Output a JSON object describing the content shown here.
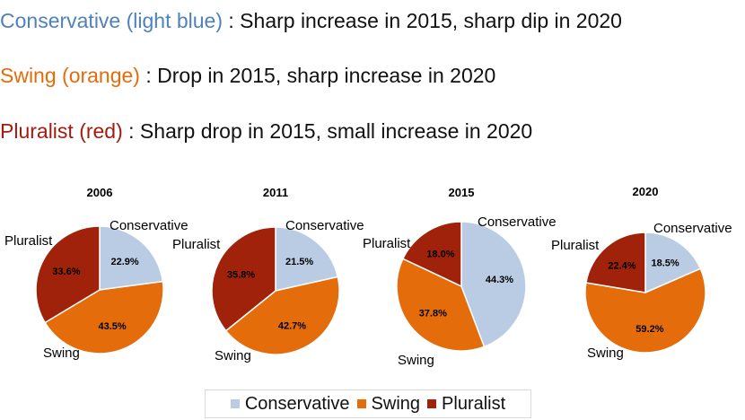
{
  "notes": [
    {
      "key": "Conservative (light blue)",
      "text": " : Sharp increase in 2015, sharp dip in 2020",
      "color": "#4f81bd"
    },
    {
      "key": "Swing (orange)",
      "text": " : Drop in 2015, sharp increase in 2020",
      "color": "#e36c0a"
    },
    {
      "key": "Pluralist (red)",
      "text": " : Sharp drop in 2015, small increase in 2020",
      "color": "#a51c0e"
    }
  ],
  "legend": [
    {
      "label": "Conservative",
      "color": "#b9cce4"
    },
    {
      "label": "Swing",
      "color": "#e46c0a"
    },
    {
      "label": "Pluralist",
      "color": "#a0220a"
    }
  ],
  "chart_data": [
    {
      "type": "pie",
      "title": "2006",
      "labels": [
        "Conservative",
        "Swing",
        "Pluralist"
      ],
      "values": [
        22.9,
        43.5,
        33.6
      ],
      "data_labels": [
        "22.9%",
        "43.5%",
        "33.6%"
      ]
    },
    {
      "type": "pie",
      "title": "2011",
      "labels": [
        "Conservative",
        "Swing",
        "Pluralist"
      ],
      "values": [
        21.5,
        42.7,
        35.8
      ],
      "data_labels": [
        "21.5%",
        "42.7%",
        "35.8%"
      ]
    },
    {
      "type": "pie",
      "title": "2015",
      "labels": [
        "Conservative",
        "Swing",
        "Pluralist"
      ],
      "values": [
        44.3,
        37.8,
        18.0
      ],
      "data_labels": [
        "44.3%",
        "37.8%",
        "18.0%"
      ]
    },
    {
      "type": "pie",
      "title": "2020",
      "labels": [
        "Conservative",
        "Swing",
        "Pluralist"
      ],
      "values": [
        18.5,
        59.2,
        22.4
      ],
      "data_labels": [
        "18.5%",
        "59.2%",
        "22.4%"
      ]
    }
  ]
}
